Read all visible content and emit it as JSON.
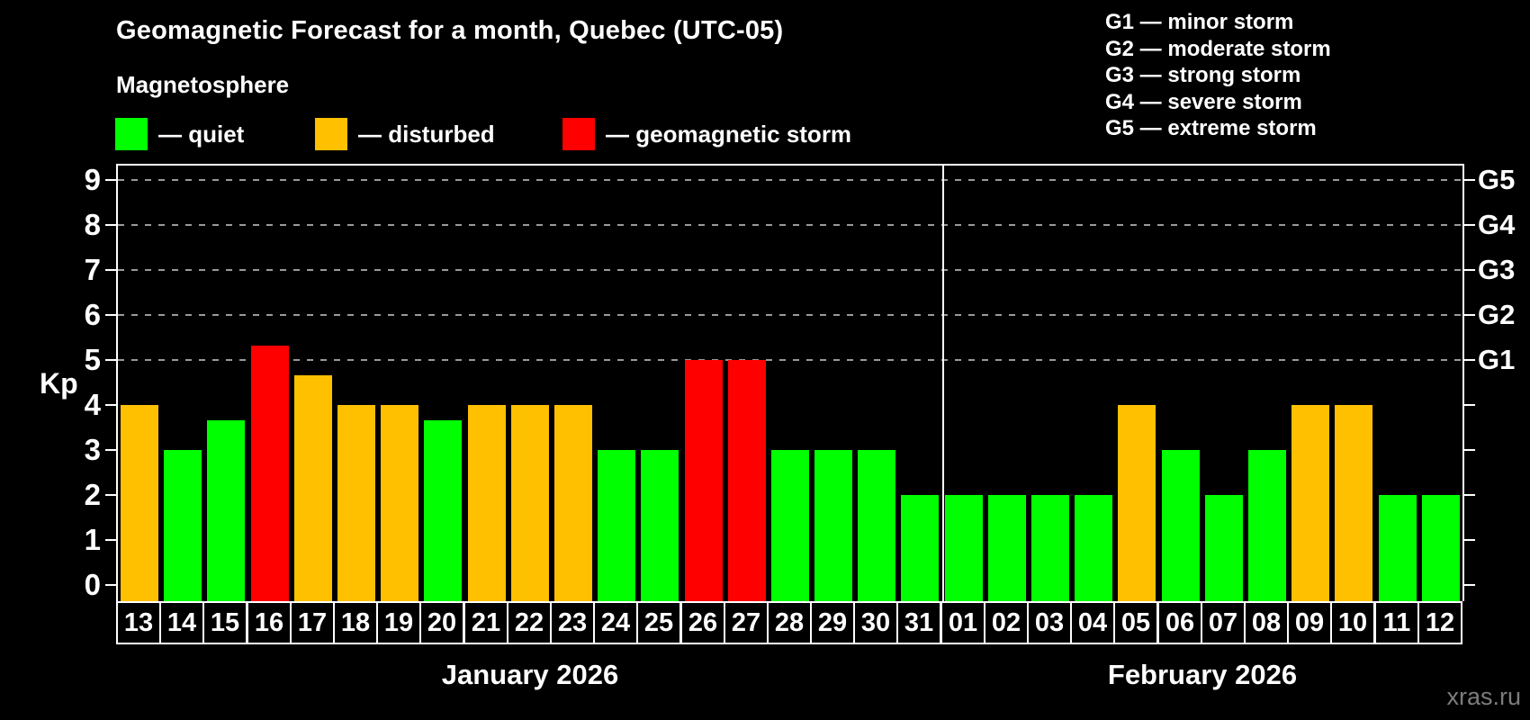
{
  "title": "Geomagnetic Forecast for a month, Quebec (UTC-05)",
  "subtitle": "Magnetosphere",
  "legend": {
    "items": [
      {
        "name": "quiet",
        "label": "— quiet",
        "color": "#00ff00"
      },
      {
        "name": "disturbed",
        "label": "— disturbed",
        "color": "#ffc000"
      },
      {
        "name": "storm",
        "label": "— geomagnetic storm",
        "color": "#ff0000"
      }
    ]
  },
  "g_scale_legend": [
    "G1 — minor storm",
    "G2 — moderate storm",
    "G3 — strong storm",
    "G4 — severe storm",
    "G5 — extreme storm"
  ],
  "watermark": "xras.ru",
  "colors": {
    "background": "#000000",
    "text": "#ffffff",
    "axis": "#ffffff",
    "grid": "#999999",
    "watermark_text": "#7d7d7d"
  },
  "chart_data": {
    "type": "bar",
    "title": "Geomagnetic Forecast for a month, Quebec (UTC-05)",
    "ylabel": "Kp",
    "ylim": [
      0,
      9
    ],
    "yticks": [
      0,
      1,
      2,
      3,
      4,
      5,
      6,
      7,
      8,
      9
    ],
    "grid_style": "dashed-horizontal",
    "gridlines_at_kp": [
      5,
      6,
      7,
      8,
      9
    ],
    "right_axis": [
      {
        "label": "G1",
        "kp": 5
      },
      {
        "label": "G2",
        "kp": 6
      },
      {
        "label": "G3",
        "kp": 7
      },
      {
        "label": "G4",
        "kp": 8
      },
      {
        "label": "G5",
        "kp": 9
      }
    ],
    "status_colors": {
      "quiet": "#00ff00",
      "disturbed": "#ffc000",
      "storm": "#ff0000"
    },
    "months": [
      {
        "label": "January 2026",
        "days": 19
      },
      {
        "label": "February 2026",
        "days": 12
      }
    ],
    "days": [
      {
        "date": "13",
        "kp": 4.0,
        "status": "disturbed"
      },
      {
        "date": "14",
        "kp": 3.0,
        "status": "quiet"
      },
      {
        "date": "15",
        "kp": 3.67,
        "status": "quiet"
      },
      {
        "date": "16",
        "kp": 5.33,
        "status": "storm"
      },
      {
        "date": "17",
        "kp": 4.67,
        "status": "disturbed"
      },
      {
        "date": "18",
        "kp": 4.0,
        "status": "disturbed"
      },
      {
        "date": "19",
        "kp": 4.0,
        "status": "disturbed"
      },
      {
        "date": "20",
        "kp": 3.67,
        "status": "quiet"
      },
      {
        "date": "21",
        "kp": 4.0,
        "status": "disturbed"
      },
      {
        "date": "22",
        "kp": 4.0,
        "status": "disturbed"
      },
      {
        "date": "23",
        "kp": 4.0,
        "status": "disturbed"
      },
      {
        "date": "24",
        "kp": 3.0,
        "status": "quiet"
      },
      {
        "date": "25",
        "kp": 3.0,
        "status": "quiet"
      },
      {
        "date": "26",
        "kp": 5.0,
        "status": "storm"
      },
      {
        "date": "27",
        "kp": 5.0,
        "status": "storm"
      },
      {
        "date": "28",
        "kp": 3.0,
        "status": "quiet"
      },
      {
        "date": "29",
        "kp": 3.0,
        "status": "quiet"
      },
      {
        "date": "30",
        "kp": 3.0,
        "status": "quiet"
      },
      {
        "date": "31",
        "kp": 2.0,
        "status": "quiet"
      },
      {
        "date": "01",
        "kp": 2.0,
        "status": "quiet"
      },
      {
        "date": "02",
        "kp": 2.0,
        "status": "quiet"
      },
      {
        "date": "03",
        "kp": 2.0,
        "status": "quiet"
      },
      {
        "date": "04",
        "kp": 2.0,
        "status": "quiet"
      },
      {
        "date": "05",
        "kp": 4.0,
        "status": "disturbed"
      },
      {
        "date": "06",
        "kp": 3.0,
        "status": "quiet"
      },
      {
        "date": "07",
        "kp": 2.0,
        "status": "quiet"
      },
      {
        "date": "08",
        "kp": 3.0,
        "status": "quiet"
      },
      {
        "date": "09",
        "kp": 4.0,
        "status": "disturbed"
      },
      {
        "date": "10",
        "kp": 4.0,
        "status": "disturbed"
      },
      {
        "date": "11",
        "kp": 2.0,
        "status": "quiet"
      },
      {
        "date": "12",
        "kp": 2.0,
        "status": "quiet"
      }
    ]
  }
}
